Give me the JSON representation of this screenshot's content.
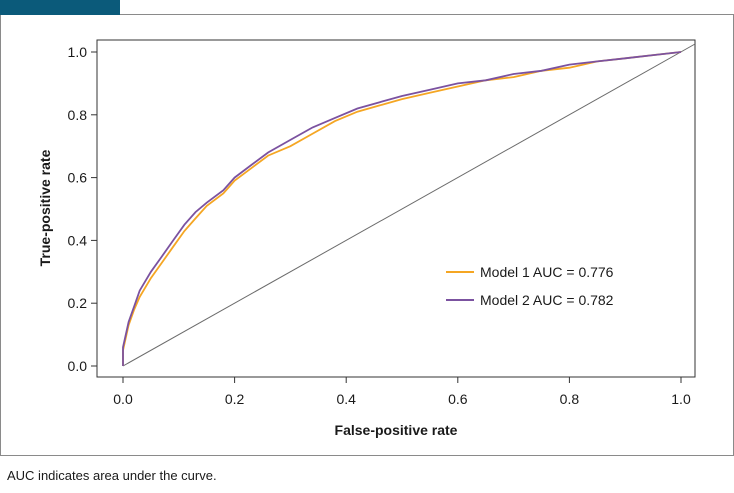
{
  "chart_data": {
    "type": "line",
    "title": "",
    "xlabel": "False-positive rate",
    "ylabel": "True-positive rate",
    "xlim": [
      0,
      1
    ],
    "ylim": [
      0,
      1
    ],
    "x_ticks": [
      "0.0",
      "0.2",
      "0.4",
      "0.6",
      "0.8",
      "1.0"
    ],
    "y_ticks": [
      "0.0",
      "0.2",
      "0.4",
      "0.6",
      "0.8",
      "1.0"
    ],
    "grid": false,
    "legend_position": "bottom-right",
    "reference_line": {
      "x": [
        0,
        1
      ],
      "y": [
        0,
        1
      ],
      "color": "#6b6b6b"
    },
    "series": [
      {
        "name": "Model 1 AUC = 0.776",
        "color": "#f5a623",
        "x": [
          0,
          0,
          0.01,
          0.02,
          0.03,
          0.05,
          0.07,
          0.09,
          0.11,
          0.13,
          0.15,
          0.18,
          0.2,
          0.23,
          0.26,
          0.3,
          0.34,
          0.38,
          0.42,
          0.46,
          0.5,
          0.55,
          0.6,
          0.65,
          0.7,
          0.75,
          0.8,
          0.85,
          0.9,
          0.95,
          1.0
        ],
        "y": [
          0,
          0.05,
          0.13,
          0.18,
          0.22,
          0.28,
          0.33,
          0.38,
          0.43,
          0.47,
          0.51,
          0.55,
          0.59,
          0.63,
          0.67,
          0.7,
          0.74,
          0.78,
          0.81,
          0.83,
          0.85,
          0.87,
          0.89,
          0.91,
          0.92,
          0.94,
          0.95,
          0.97,
          0.98,
          0.99,
          1.0
        ]
      },
      {
        "name": "Model 2 AUC = 0.782",
        "color": "#7b52a0",
        "x": [
          0,
          0,
          0.01,
          0.02,
          0.03,
          0.05,
          0.07,
          0.09,
          0.11,
          0.13,
          0.15,
          0.18,
          0.2,
          0.23,
          0.26,
          0.3,
          0.34,
          0.38,
          0.42,
          0.46,
          0.5,
          0.55,
          0.6,
          0.65,
          0.7,
          0.75,
          0.8,
          0.85,
          0.9,
          0.95,
          1.0
        ],
        "y": [
          0,
          0.06,
          0.14,
          0.19,
          0.24,
          0.3,
          0.35,
          0.4,
          0.45,
          0.49,
          0.52,
          0.56,
          0.6,
          0.64,
          0.68,
          0.72,
          0.76,
          0.79,
          0.82,
          0.84,
          0.86,
          0.88,
          0.9,
          0.91,
          0.93,
          0.94,
          0.96,
          0.97,
          0.98,
          0.99,
          1.0
        ]
      }
    ]
  },
  "caption": "AUC indicates area under the curve."
}
